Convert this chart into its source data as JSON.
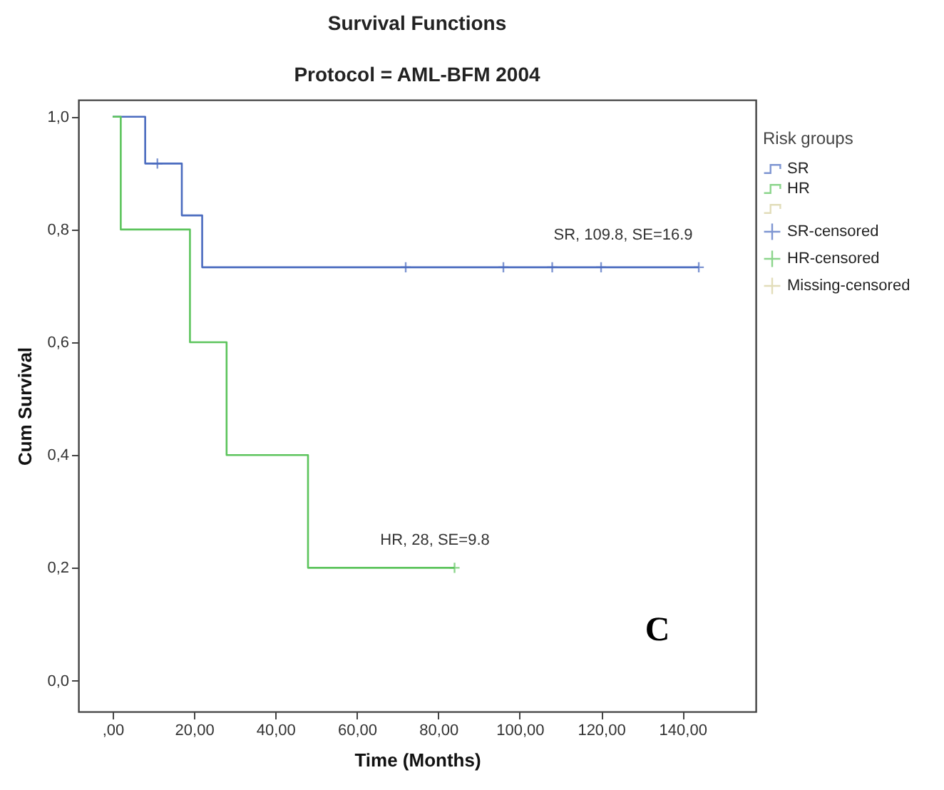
{
  "chart_data": {
    "type": "step",
    "title": "Survival Functions",
    "subtitle": "Protocol = AML-BFM 2004",
    "xlabel": "Time (Months)",
    "ylabel": "Cum Survival",
    "legend_title": "Risk groups",
    "legend": "right",
    "xlim": [
      -8.4,
      158
    ],
    "ylim": [
      -0.055,
      1.03
    ],
    "xticks": [
      {
        "value": 0,
        "label": ",00"
      },
      {
        "value": 20,
        "label": "20,00"
      },
      {
        "value": 40,
        "label": "40,00"
      },
      {
        "value": 60,
        "label": "60,00"
      },
      {
        "value": 80,
        "label": "80,00"
      },
      {
        "value": 100,
        "label": "100,00"
      },
      {
        "value": 120,
        "label": "120,00"
      },
      {
        "value": 140,
        "label": "140,00"
      }
    ],
    "yticks": [
      {
        "value": 0,
        "label": "0,0"
      },
      {
        "value": 0.2,
        "label": "0,2"
      },
      {
        "value": 0.4,
        "label": "0,4"
      },
      {
        "value": 0.6,
        "label": "0,6"
      },
      {
        "value": 0.8,
        "label": "0,8"
      },
      {
        "value": 1,
        "label": "1,0"
      }
    ],
    "series": [
      {
        "name": "SR",
        "type": "step",
        "color": "#4a6bbf",
        "x": [
          0,
          8,
          17,
          22,
          144
        ],
        "values": [
          1,
          0.917,
          0.825,
          0.733,
          0.733
        ]
      },
      {
        "name": "HR",
        "type": "step",
        "color": "#5cc45c",
        "x": [
          0,
          2,
          19,
          28,
          48,
          84
        ],
        "values": [
          1,
          0.8,
          0.6,
          0.4,
          0.2,
          0.2
        ]
      },
      {
        "type": "step",
        "color": "#d6cf9e"
      },
      {
        "name": "SR-censored",
        "type": "scatter",
        "marker": "cross",
        "color": "#4a6bbf",
        "x": [
          11,
          72,
          96,
          108,
          120,
          144
        ],
        "values": [
          0.917,
          0.733,
          0.733,
          0.733,
          0.733,
          0.733
        ]
      },
      {
        "name": "HR-censored",
        "type": "scatter",
        "marker": "cross",
        "color": "#5cc45c",
        "x": [
          84
        ],
        "values": [
          0.2
        ]
      },
      {
        "name": "Missing-censored",
        "type": "scatter",
        "marker": "cross",
        "color": "#d6cf9e"
      }
    ],
    "annotations": [
      "SR, 109.8, SE=16.9",
      "HR, 28, SE=9.8",
      "C"
    ]
  }
}
